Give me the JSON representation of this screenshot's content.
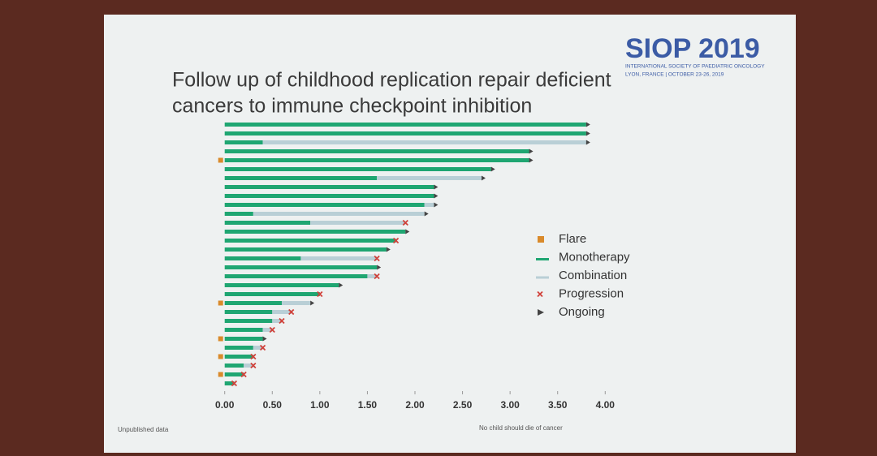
{
  "slide": {
    "logo": "SIOP 2019",
    "society": "INTERNATIONAL SOCIETY OF PAEDIATRIC ONCOLOGY",
    "venue": "LYON, FRANCE | OCTOBER 23-26, 2019",
    "footer_left": "Unpublished data",
    "footer_right": "No child should die of cancer"
  },
  "chart_data": {
    "type": "swimmer",
    "title_lines": [
      "Follow up of childhood replication repair deficient",
      "cancers to immune checkpoint inhibition"
    ],
    "xlim": [
      -0.1,
      4.1
    ],
    "xticks": [
      {
        "value": 0,
        "label": "0.00"
      },
      {
        "value": 0.5,
        "label": "0.50"
      },
      {
        "value": 1,
        "label": "1.00"
      },
      {
        "value": 1.5,
        "label": "1.50"
      },
      {
        "value": 2,
        "label": "2.00"
      },
      {
        "value": 2.5,
        "label": "2.50"
      },
      {
        "value": 3,
        "label": "3.00"
      },
      {
        "value": 3.5,
        "label": "3.50"
      },
      {
        "value": 4,
        "label": "4.00"
      }
    ],
    "series": [
      {
        "name": "Flare",
        "color": "#d98a2b",
        "values": [
          null,
          null,
          null,
          null,
          0.0,
          null,
          null,
          null,
          null,
          null,
          null,
          null,
          null,
          null,
          null,
          null,
          null,
          null,
          null,
          null,
          0.0,
          null,
          null,
          null,
          0.0,
          null,
          0.0,
          null,
          0.0,
          null
        ]
      },
      {
        "name": "Monotherapy",
        "color": "#1fa672",
        "values": [
          3.8,
          3.8,
          0.4,
          3.2,
          3.2,
          2.8,
          1.6,
          2.2,
          2.2,
          2.1,
          0.3,
          0.9,
          1.9,
          1.8,
          1.7,
          0.8,
          1.6,
          1.5,
          1.2,
          1.0,
          0.6,
          0.5,
          0.5,
          0.4,
          0.4,
          0.3,
          0.3,
          0.2,
          0.2,
          0.1
        ]
      },
      {
        "name": "Combination",
        "color": "#b9cfd6",
        "values": [
          0,
          0,
          3.4,
          0,
          0,
          0,
          1.1,
          0,
          0,
          0.1,
          1.8,
          1.0,
          0,
          0,
          0,
          0.8,
          0,
          0.1,
          0,
          0,
          0.3,
          0.2,
          0.1,
          0.1,
          0,
          0.1,
          0,
          0.1,
          0,
          0
        ]
      },
      {
        "name": "Progression",
        "color": "#d0413a",
        "values": [
          null,
          null,
          null,
          null,
          null,
          null,
          null,
          null,
          null,
          null,
          null,
          1.9,
          null,
          1.8,
          null,
          1.6,
          null,
          1.6,
          null,
          1.0,
          null,
          0.7,
          0.6,
          0.5,
          null,
          0.4,
          0.3,
          0.3,
          0.2,
          0.1
        ]
      },
      {
        "name": "Ongoing",
        "color": "#444444",
        "values": [
          3.8,
          3.8,
          3.8,
          3.2,
          3.2,
          2.8,
          2.7,
          2.2,
          2.2,
          2.2,
          2.1,
          null,
          1.9,
          null,
          1.7,
          null,
          1.6,
          null,
          1.2,
          null,
          0.9,
          null,
          null,
          null,
          0.4,
          null,
          null,
          null,
          null,
          null
        ]
      }
    ]
  }
}
